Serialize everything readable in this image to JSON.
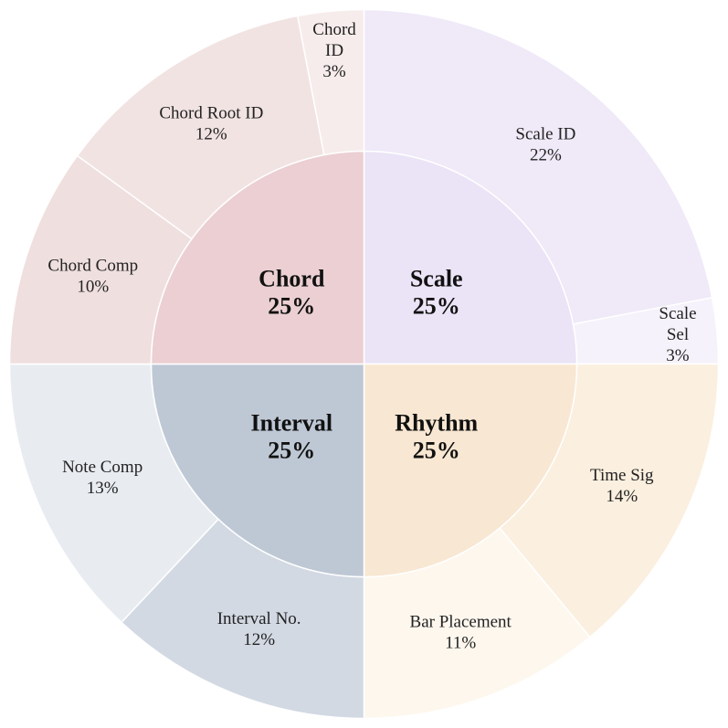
{
  "chart_data": {
    "type": "sunburst",
    "title": "",
    "start_angle_deg": 0,
    "direction": "clockwise",
    "legend": "none",
    "inner": [
      {
        "name": "Scale",
        "value": 25,
        "label": "25%",
        "color": "#ebe3f6",
        "children": [
          {
            "name": "Scale ID",
            "value": 22,
            "label": "22%",
            "color": "#efe9f8"
          },
          {
            "name": "Scale Sel",
            "value": 3,
            "label": "3%",
            "color": "#f6f2fb"
          }
        ]
      },
      {
        "name": "Rhythm",
        "value": 25,
        "label": "25%",
        "color": "#f8e7d2",
        "children": [
          {
            "name": "Time Sig",
            "value": 14,
            "label": "14%",
            "color": "#fbefdf"
          },
          {
            "name": "Bar Placement",
            "value": 11,
            "label": "11%",
            "color": "#fdf7ee"
          }
        ]
      },
      {
        "name": "Interval",
        "value": 25,
        "label": "25%",
        "color": "#bec8d5",
        "children": [
          {
            "name": "Interval No.",
            "value": 12,
            "label": "12%",
            "color": "#d2d9e3"
          },
          {
            "name": "Note Comp",
            "value": 13,
            "label": "13%",
            "color": "#e8ecf1"
          }
        ]
      },
      {
        "name": "Chord",
        "value": 25,
        "label": "25%",
        "color": "#ebcfd2",
        "children": [
          {
            "name": "Chord Comp",
            "value": 10,
            "label": "10%",
            "color": "#f0dfdf"
          },
          {
            "name": "Chord Root ID",
            "value": 12,
            "label": "12%",
            "color": "#f2e3e3"
          },
          {
            "name": "Chord ID",
            "value": 3,
            "label": "3%",
            "color": "#f6eceb"
          }
        ]
      }
    ]
  }
}
